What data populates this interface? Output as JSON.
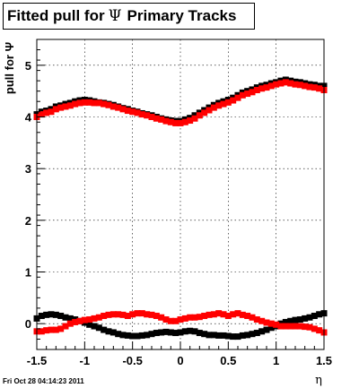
{
  "title": {
    "prefix": "Fitted pull for",
    "symbol": "Ψ",
    "suffix": "Primary Tracks"
  },
  "timestamp": "Fri Oct 28 04:14:23 2011",
  "chart_data": {
    "type": "scatter",
    "xlabel": "η",
    "ylabel": "pull for Ψ",
    "xlim": [
      -1.5,
      1.5
    ],
    "ylim": [
      -0.5,
      5.5
    ],
    "xticks": [
      -1.5,
      -1,
      -0.5,
      0,
      0.5,
      1,
      1.5
    ],
    "xtick_labels": [
      "-1.5",
      "-1",
      "-0.5",
      "0",
      "0.5",
      "1",
      "1.5"
    ],
    "yticks": [
      0,
      1,
      2,
      3,
      4,
      5
    ],
    "ytick_labels": [
      "0",
      "1",
      "2",
      "3",
      "4",
      "5"
    ],
    "grid": true,
    "marker": "square",
    "x": [
      -1.5,
      -1.45,
      -1.4,
      -1.35,
      -1.3,
      -1.25,
      -1.2,
      -1.15,
      -1.1,
      -1.05,
      -1.0,
      -0.95,
      -0.9,
      -0.85,
      -0.8,
      -0.75,
      -0.7,
      -0.65,
      -0.6,
      -0.55,
      -0.5,
      -0.45,
      -0.4,
      -0.35,
      -0.3,
      -0.25,
      -0.2,
      -0.15,
      -0.1,
      -0.05,
      0.0,
      0.05,
      0.1,
      0.15,
      0.2,
      0.25,
      0.3,
      0.35,
      0.4,
      0.45,
      0.5,
      0.55,
      0.6,
      0.65,
      0.7,
      0.75,
      0.8,
      0.85,
      0.9,
      0.95,
      1.0,
      1.05,
      1.1,
      1.15,
      1.2,
      1.25,
      1.3,
      1.35,
      1.4,
      1.45,
      1.5
    ],
    "series": [
      {
        "color": "#000000",
        "values": [
          4.05,
          4.1,
          4.12,
          4.15,
          4.2,
          4.22,
          4.25,
          4.27,
          4.3,
          4.32,
          4.33,
          4.32,
          4.3,
          4.28,
          4.27,
          4.25,
          4.23,
          4.2,
          4.17,
          4.15,
          4.12,
          4.1,
          4.07,
          4.05,
          4.03,
          4.0,
          3.97,
          3.95,
          3.93,
          3.92,
          3.92,
          3.95,
          3.98,
          4.03,
          4.08,
          4.13,
          4.18,
          4.23,
          4.27,
          4.3,
          4.33,
          4.37,
          4.42,
          4.47,
          4.5,
          4.53,
          4.57,
          4.6,
          4.62,
          4.65,
          4.67,
          4.7,
          4.72,
          4.7,
          4.68,
          4.67,
          4.65,
          4.63,
          4.62,
          4.6,
          4.6
        ]
      },
      {
        "color": "#ff0000",
        "values": [
          4.0,
          4.05,
          4.08,
          4.1,
          4.15,
          4.18,
          4.2,
          4.22,
          4.25,
          4.27,
          4.28,
          4.28,
          4.27,
          4.27,
          4.25,
          4.23,
          4.2,
          4.18,
          4.15,
          4.12,
          4.1,
          4.08,
          4.05,
          4.03,
          4.0,
          3.97,
          3.95,
          3.92,
          3.9,
          3.88,
          3.88,
          3.9,
          3.93,
          3.97,
          4.03,
          4.08,
          4.13,
          4.18,
          4.22,
          4.25,
          4.28,
          4.32,
          4.37,
          4.42,
          4.45,
          4.48,
          4.52,
          4.55,
          4.57,
          4.6,
          4.63,
          4.65,
          4.67,
          4.65,
          4.63,
          4.62,
          4.6,
          4.58,
          4.57,
          4.55,
          4.52
        ]
      },
      {
        "color": "#000000",
        "values": [
          0.1,
          0.15,
          0.17,
          0.18,
          0.17,
          0.15,
          0.12,
          0.1,
          0.08,
          0.05,
          0.02,
          -0.02,
          -0.05,
          -0.08,
          -0.12,
          -0.15,
          -0.17,
          -0.2,
          -0.22,
          -0.23,
          -0.24,
          -0.24,
          -0.23,
          -0.22,
          -0.2,
          -0.18,
          -0.17,
          -0.16,
          -0.17,
          -0.18,
          -0.17,
          -0.15,
          -0.14,
          -0.15,
          -0.18,
          -0.2,
          -0.22,
          -0.22,
          -0.23,
          -0.23,
          -0.24,
          -0.25,
          -0.25,
          -0.23,
          -0.22,
          -0.2,
          -0.18,
          -0.15,
          -0.12,
          -0.08,
          -0.05,
          0.0,
          0.03,
          0.05,
          0.07,
          0.08,
          0.1,
          0.12,
          0.15,
          0.18,
          0.2
        ]
      },
      {
        "color": "#ff0000",
        "values": [
          -0.15,
          -0.15,
          -0.13,
          -0.12,
          -0.12,
          -0.1,
          -0.05,
          0.0,
          0.03,
          0.05,
          0.07,
          0.08,
          0.1,
          0.12,
          0.15,
          0.17,
          0.18,
          0.18,
          0.17,
          0.15,
          0.18,
          0.2,
          0.2,
          0.18,
          0.17,
          0.15,
          0.12,
          0.08,
          0.05,
          0.05,
          0.08,
          0.1,
          0.12,
          0.12,
          0.13,
          0.15,
          0.17,
          0.18,
          0.2,
          0.18,
          0.15,
          0.18,
          0.2,
          0.17,
          0.15,
          0.12,
          0.08,
          0.05,
          0.02,
          0.0,
          -0.02,
          -0.05,
          -0.05,
          -0.05,
          -0.05,
          -0.05,
          -0.06,
          -0.07,
          -0.1,
          -0.13,
          -0.17
        ]
      }
    ]
  }
}
